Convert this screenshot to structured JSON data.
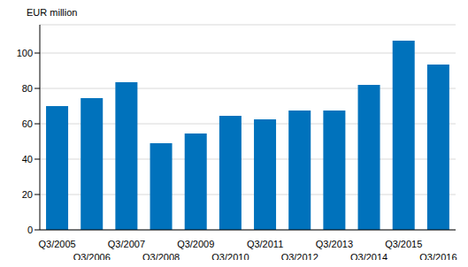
{
  "chart_data": {
    "type": "bar",
    "y_label": "EUR million",
    "categories": [
      "Q3/2005",
      "Q3/2006",
      "Q3/2007",
      "Q3/2008",
      "Q3/2009",
      "Q3/2010",
      "Q3/2011",
      "Q3/2012",
      "Q3/2013",
      "Q3/2014",
      "Q3/2015",
      "Q3/2016"
    ],
    "values": [
      70,
      74.5,
      83.5,
      49,
      54.5,
      64.5,
      62.5,
      67.5,
      67.5,
      82,
      107,
      93.5
    ],
    "color": "#0072bc",
    "ylim": [
      0,
      116
    ],
    "yticks": [
      0,
      20,
      40,
      60,
      80,
      100
    ],
    "grid": true
  }
}
